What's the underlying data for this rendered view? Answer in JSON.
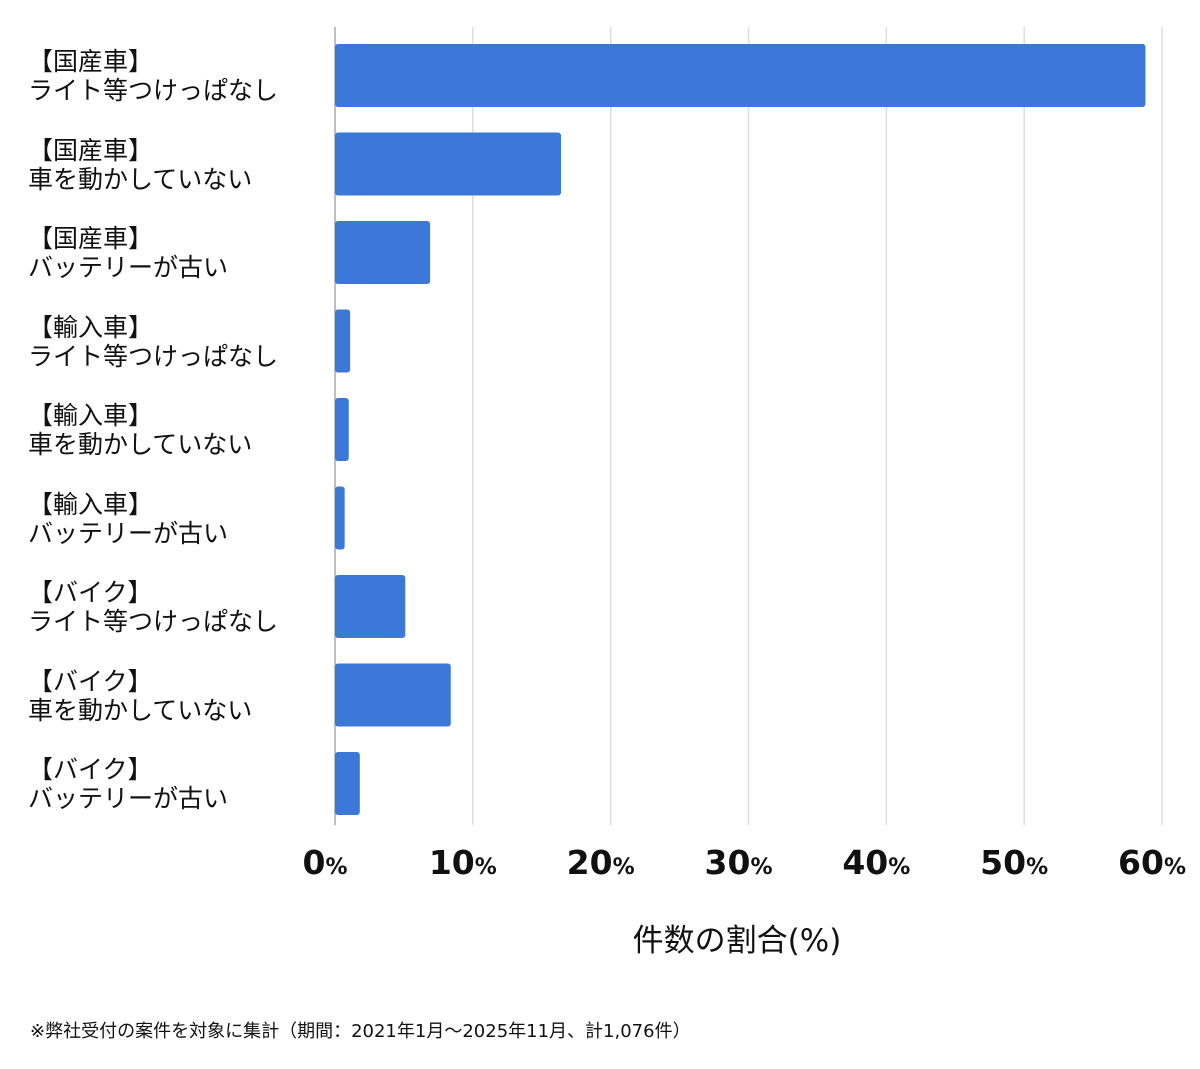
{
  "chart_data": {
    "type": "bar",
    "orientation": "horizontal",
    "categories": [
      [
        "【国産車】",
        "ライト等つけっぱなし"
      ],
      [
        "【国産車】",
        "車を動かしていない"
      ],
      [
        "【国産車】",
        "バッテリーが古い"
      ],
      [
        "【輸入車】",
        "ライト等つけっぱなし"
      ],
      [
        "【輸入車】",
        "車を動かしていない"
      ],
      [
        "【輸入車】",
        "バッテリーが古い"
      ],
      [
        "【バイク】",
        "ライト等つけっぱなし"
      ],
      [
        "【バイク】",
        "車を動かしていない"
      ],
      [
        "【バイク】",
        "バッテリーが古い"
      ]
    ],
    "values": [
      58.8,
      16.4,
      6.9,
      1.1,
      1.0,
      0.7,
      5.1,
      8.4,
      1.8
    ],
    "xlabel": "件数の割合(%)",
    "xlim": [
      0,
      60
    ],
    "xticks": [
      0,
      10,
      20,
      30,
      40,
      50,
      60
    ],
    "tick_unit": "%",
    "grid": true,
    "bar_color": "#3c78d8",
    "grid_color": "#dddddd"
  },
  "footnote": "※弊社受付の案件を対象に集計（期間：2021年1月〜2025年11月、計1,076件）"
}
